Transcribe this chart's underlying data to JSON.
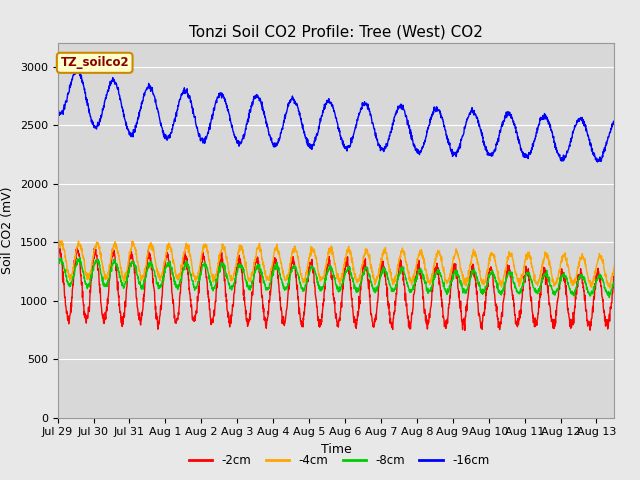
{
  "title": "Tonzi Soil CO2 Profile: Tree (West) CO2",
  "xlabel": "Time",
  "ylabel": "Soil CO2 (mV)",
  "ylim": [
    0,
    3200
  ],
  "yticks": [
    0,
    500,
    1000,
    1500,
    2000,
    2500,
    3000
  ],
  "fig_bg": "#e8e8e8",
  "plot_bg": "#d8d8d8",
  "legend_label": "TZ_soilco2",
  "legend_bg": "#ffffcc",
  "legend_edge": "#cc8800",
  "colors": {
    "-2cm": "#ff0000",
    "-4cm": "#ffa500",
    "-8cm": "#00cc00",
    "-16cm": "#0000ff"
  },
  "x_tick_labels": [
    "Jul 29",
    "Jul 30",
    "Jul 31",
    "Aug 1",
    "Aug 2",
    "Aug 3",
    "Aug 4",
    "Aug 5",
    "Aug 6",
    "Aug 7",
    "Aug 8",
    "Aug 9",
    "Aug 10",
    "Aug 11",
    "Aug 12",
    "Aug 13"
  ],
  "title_fontsize": 11,
  "axis_label_fontsize": 9,
  "tick_fontsize": 8
}
